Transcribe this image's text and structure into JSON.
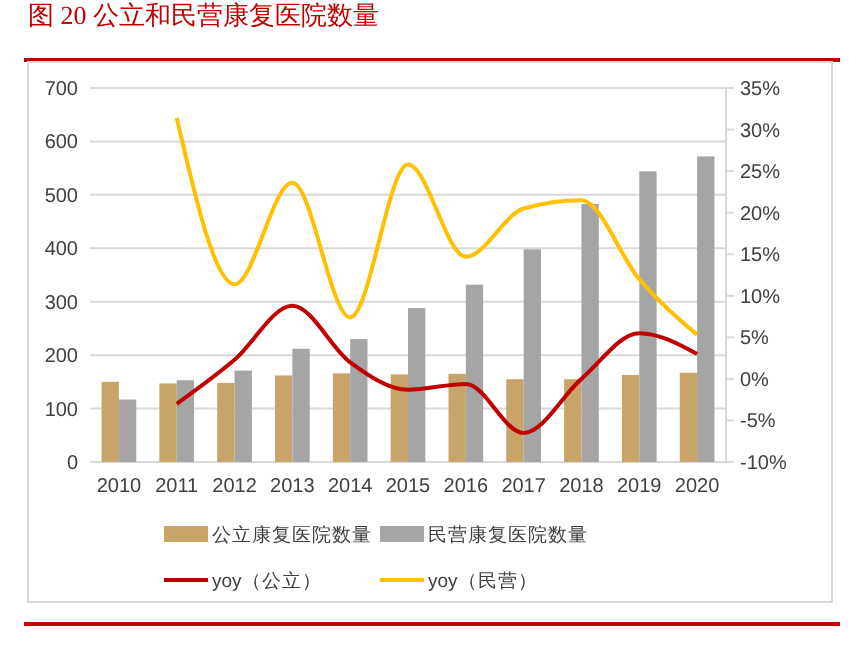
{
  "chart_data": {
    "type": "bar",
    "title": "图 20 公立和民营康复医院数量",
    "categories": [
      "2010",
      "2011",
      "2012",
      "2013",
      "2014",
      "2015",
      "2016",
      "2017",
      "2018",
      "2019",
      "2020"
    ],
    "series": [
      {
        "name": "公立康复医院数量",
        "color": "#c9a468",
        "values": [
          150,
          147,
          148,
          162,
          166,
          164,
          165,
          155,
          155,
          163,
          167
        ]
      },
      {
        "name": "民营康复医院数量",
        "color": "#a5a5a5",
        "values": [
          117,
          153,
          171,
          212,
          230,
          288,
          332,
          398,
          483,
          544,
          572
        ]
      },
      {
        "name": "yoy（公立）",
        "type": "line",
        "axis": "y2",
        "color": "#c00000",
        "values": [
          null,
          -3,
          2.3,
          8.8,
          2,
          -1.3,
          -0.6,
          -6.5,
          0,
          5.5,
          3
        ]
      },
      {
        "name": "yoy（民营）",
        "type": "line",
        "axis": "y2",
        "color": "#ffc000",
        "values": [
          null,
          31.4,
          11.4,
          23.6,
          7.4,
          25.8,
          14.7,
          20.5,
          21.5,
          12,
          5.3
        ]
      }
    ],
    "ylim": [
      0,
      700
    ],
    "yticks": [
      0,
      100,
      200,
      300,
      400,
      500,
      600,
      700
    ],
    "y2lim": [
      -10,
      35
    ],
    "y2ticks": [
      {
        "value": -10,
        "label": "-10%"
      },
      {
        "value": -5,
        "label": "-5%"
      },
      {
        "value": 0,
        "label": "0%"
      },
      {
        "value": 5,
        "label": "5%"
      },
      {
        "value": 10,
        "label": "10%"
      },
      {
        "value": 15,
        "label": "15%"
      },
      {
        "value": 20,
        "label": "20%"
      },
      {
        "value": 25,
        "label": "25%"
      },
      {
        "value": 30,
        "label": "30%"
      },
      {
        "value": 35,
        "label": "35%"
      }
    ],
    "grid": "y",
    "legend": "bottom",
    "marker": "none",
    "line_style": "solid"
  }
}
